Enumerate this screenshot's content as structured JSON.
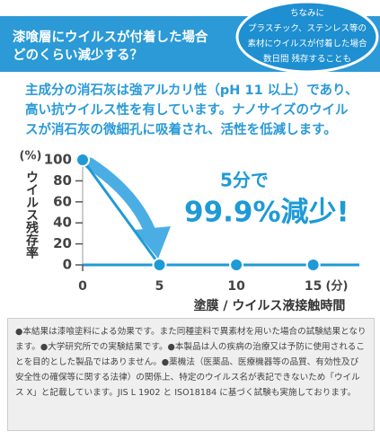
{
  "header": {
    "title_lines": [
      "漆喰層にウイルスが付着した場合",
      "どのくらい減少する？"
    ],
    "bubble_lines": [
      "ちなみに",
      "プラスチック、ステンレス等の",
      "素材にウイルスが付着した場合",
      "数日間 残存することも"
    ]
  },
  "body_text": "主成分の消石灰は強アルカリ性（pH 11 以上）であり、高い抗ウイルス性を有しています。ナノサイズのウイルスが消石灰の微細孔に吸着され、活性を低減します。",
  "chart_data": {
    "type": "line",
    "ylabel": "ウイルス残存率",
    "yunit": "(%)",
    "xlabel": "塗膜 / ウイルス液接触時間",
    "xunit": "(分)",
    "annotation": [
      "5分で",
      "99.9%減少!"
    ],
    "x": [
      0,
      5,
      10,
      15
    ],
    "series": [
      {
        "color": "#1e9ad6",
        "values": [
          100,
          0,
          0,
          0
        ]
      }
    ],
    "xlim": [
      0,
      18
    ],
    "ylim": [
      0,
      100
    ],
    "xticks": [
      0,
      5,
      10,
      15
    ],
    "yticks": [
      0,
      20,
      40,
      60,
      80,
      100
    ]
  },
  "notes": "●本結果は漆喰塗料による効果です。また同種塗料で異素材を用いた場合の試験結果となります。●大学研究所での実験結果です。●本製品は人の疾病の治療又は予防に使用されることを目的とした製品ではありません。●薬機法（医薬品、医療機器等の品質、有効性及び安全性の確保等に関する法律）の関係上、特定のウイルス名が表記できないため「ウイルス X」と記載しています。JIS L 1902 と ISO18184 に基づく試験も実施しております。"
}
